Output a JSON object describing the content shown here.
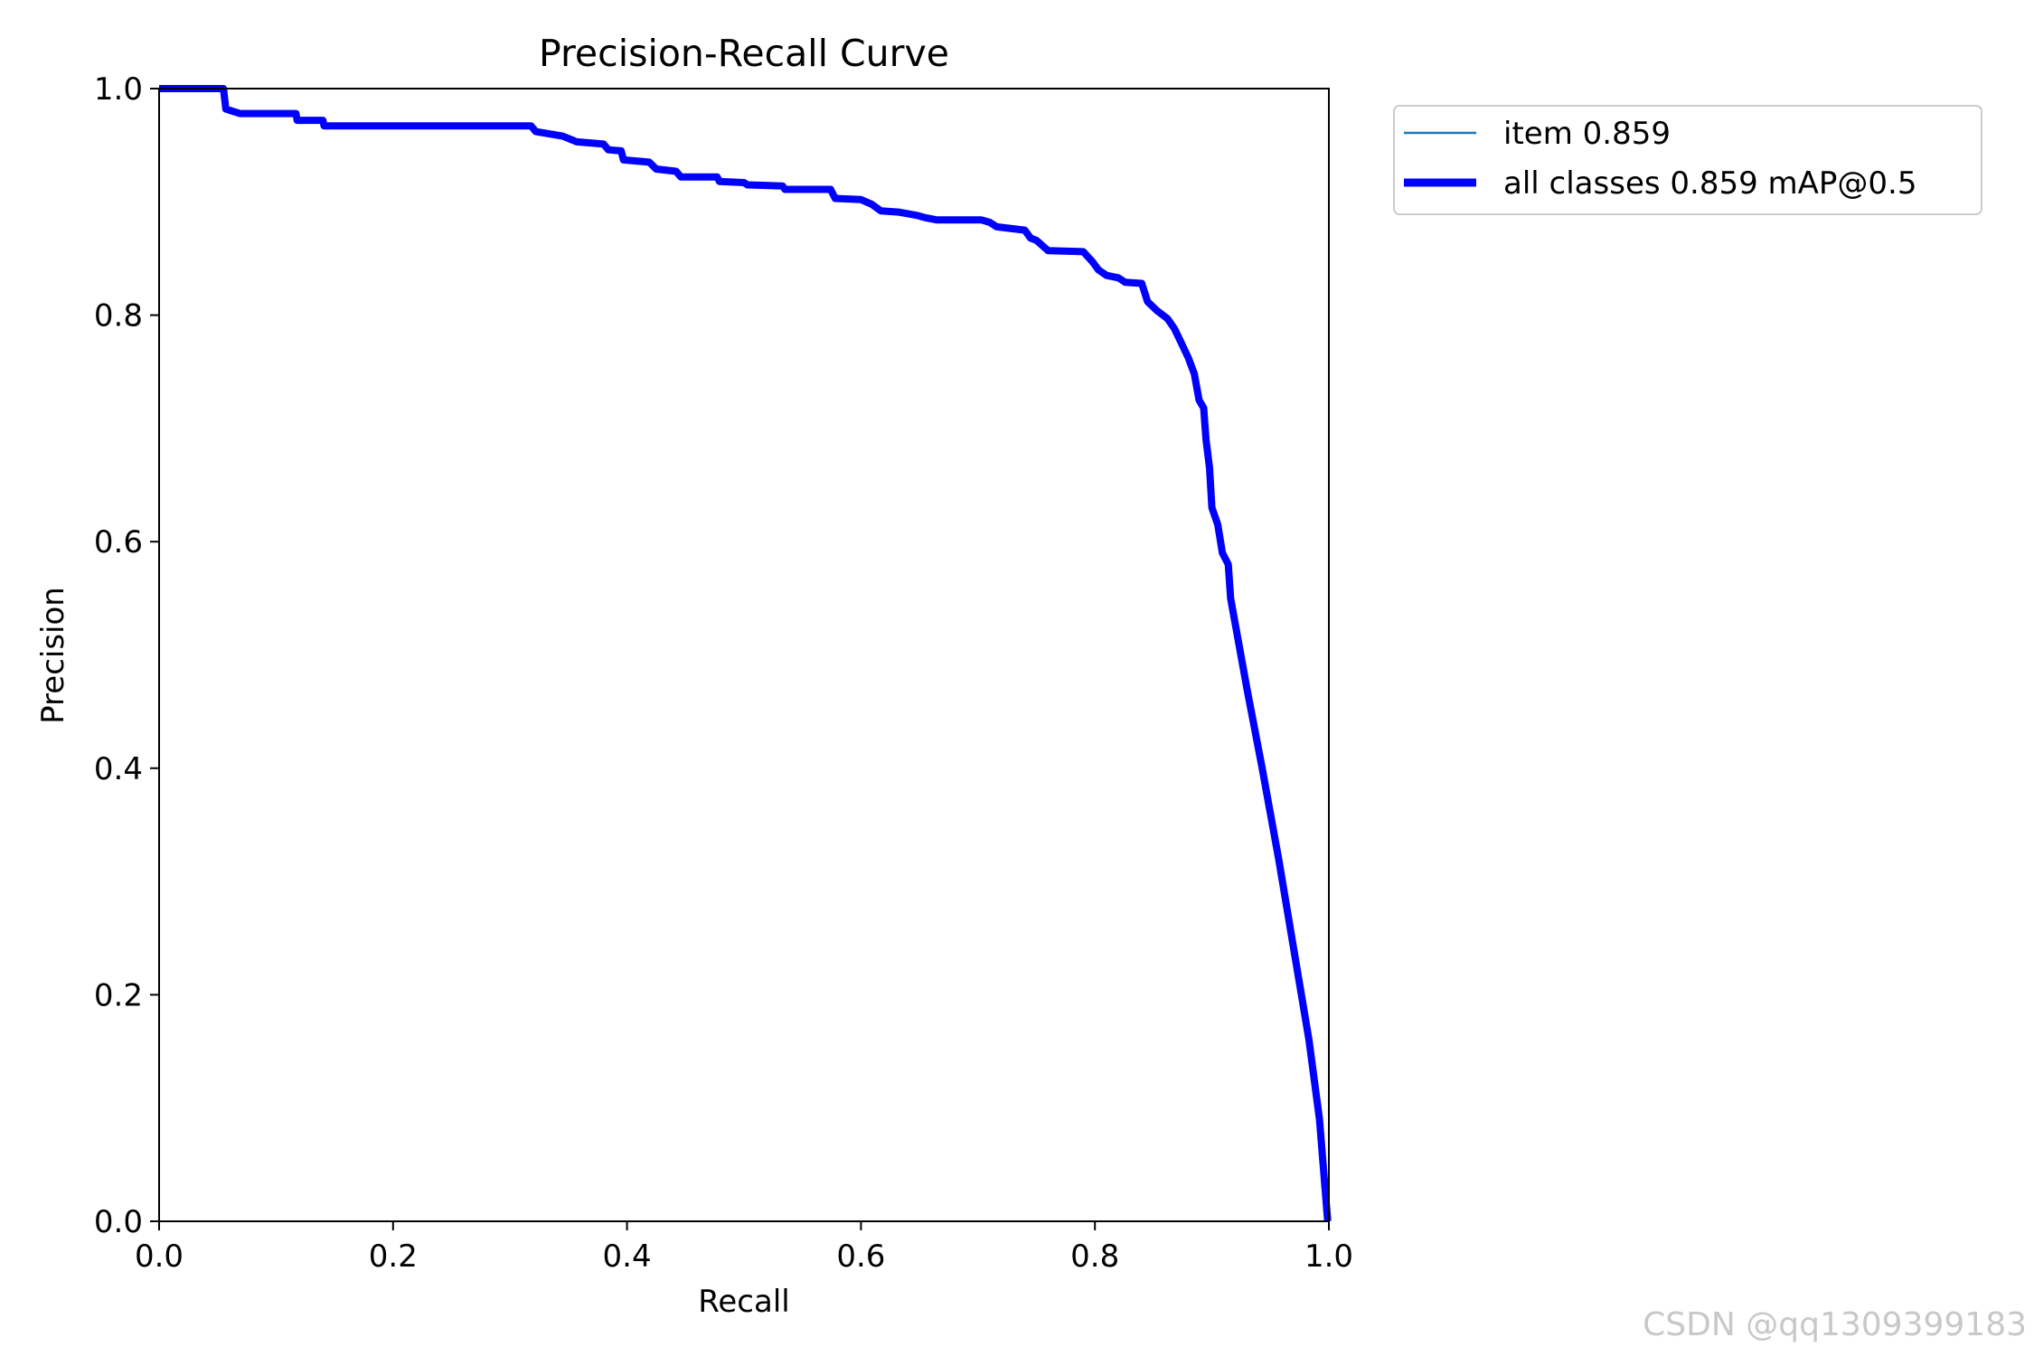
{
  "chart_data": {
    "type": "line",
    "title": "Precision-Recall Curve",
    "xlabel": "Recall",
    "ylabel": "Precision",
    "xlim": [
      0,
      1
    ],
    "ylim": [
      0,
      1
    ],
    "xticks": [
      "0.0",
      "0.2",
      "0.4",
      "0.6",
      "0.8",
      "1.0"
    ],
    "yticks": [
      "0.0",
      "0.2",
      "0.4",
      "0.6",
      "0.8",
      "1.0"
    ],
    "grid": false,
    "legend_position": "outside top-right",
    "series": [
      {
        "name": "item 0.859",
        "color": "#1f77b4",
        "style": "thin",
        "points": [
          [
            0.0,
            1.0
          ],
          [
            0.055,
            1.0
          ],
          [
            0.057,
            0.982
          ],
          [
            0.069,
            0.978
          ],
          [
            0.117,
            0.978
          ],
          [
            0.118,
            0.972
          ],
          [
            0.14,
            0.972
          ],
          [
            0.141,
            0.967
          ],
          [
            0.318,
            0.967
          ],
          [
            0.322,
            0.962
          ],
          [
            0.345,
            0.958
          ],
          [
            0.357,
            0.953
          ],
          [
            0.38,
            0.951
          ],
          [
            0.384,
            0.946
          ],
          [
            0.395,
            0.945
          ],
          [
            0.397,
            0.937
          ],
          [
            0.419,
            0.935
          ],
          [
            0.425,
            0.929
          ],
          [
            0.442,
            0.927
          ],
          [
            0.446,
            0.922
          ],
          [
            0.477,
            0.922
          ],
          [
            0.479,
            0.918
          ],
          [
            0.5,
            0.917
          ],
          [
            0.503,
            0.915
          ],
          [
            0.533,
            0.914
          ],
          [
            0.535,
            0.911
          ],
          [
            0.574,
            0.911
          ],
          [
            0.578,
            0.903
          ],
          [
            0.6,
            0.902
          ],
          [
            0.609,
            0.898
          ],
          [
            0.617,
            0.892
          ],
          [
            0.632,
            0.891
          ],
          [
            0.648,
            0.888
          ],
          [
            0.655,
            0.886
          ],
          [
            0.665,
            0.884
          ],
          [
            0.703,
            0.884
          ],
          [
            0.71,
            0.882
          ],
          [
            0.716,
            0.878
          ],
          [
            0.74,
            0.875
          ],
          [
            0.745,
            0.868
          ],
          [
            0.75,
            0.866
          ],
          [
            0.76,
            0.857
          ],
          [
            0.79,
            0.856
          ],
          [
            0.798,
            0.847
          ],
          [
            0.803,
            0.84
          ],
          [
            0.81,
            0.835
          ],
          [
            0.82,
            0.833
          ],
          [
            0.826,
            0.829
          ],
          [
            0.84,
            0.828
          ],
          [
            0.845,
            0.812
          ],
          [
            0.853,
            0.804
          ],
          [
            0.862,
            0.797
          ],
          [
            0.868,
            0.788
          ],
          [
            0.874,
            0.775
          ],
          [
            0.88,
            0.762
          ],
          [
            0.885,
            0.748
          ],
          [
            0.889,
            0.725
          ],
          [
            0.893,
            0.718
          ],
          [
            0.895,
            0.69
          ],
          [
            0.898,
            0.665
          ],
          [
            0.9,
            0.63
          ],
          [
            0.905,
            0.615
          ],
          [
            0.909,
            0.59
          ],
          [
            0.914,
            0.58
          ],
          [
            0.916,
            0.55
          ],
          [
            0.93,
            0.47
          ],
          [
            0.943,
            0.4
          ],
          [
            0.957,
            0.32
          ],
          [
            0.97,
            0.24
          ],
          [
            0.983,
            0.16
          ],
          [
            0.992,
            0.09
          ],
          [
            0.999,
            0.0
          ]
        ]
      },
      {
        "name": "all classes 0.859 mAP@0.5",
        "color": "#0000ff",
        "style": "thick",
        "points": [
          [
            0.0,
            1.0
          ],
          [
            0.055,
            1.0
          ],
          [
            0.057,
            0.982
          ],
          [
            0.069,
            0.978
          ],
          [
            0.117,
            0.978
          ],
          [
            0.118,
            0.972
          ],
          [
            0.14,
            0.972
          ],
          [
            0.141,
            0.967
          ],
          [
            0.318,
            0.967
          ],
          [
            0.322,
            0.962
          ],
          [
            0.345,
            0.958
          ],
          [
            0.357,
            0.953
          ],
          [
            0.38,
            0.951
          ],
          [
            0.384,
            0.946
          ],
          [
            0.395,
            0.945
          ],
          [
            0.397,
            0.937
          ],
          [
            0.419,
            0.935
          ],
          [
            0.425,
            0.929
          ],
          [
            0.442,
            0.927
          ],
          [
            0.446,
            0.922
          ],
          [
            0.477,
            0.922
          ],
          [
            0.479,
            0.918
          ],
          [
            0.5,
            0.917
          ],
          [
            0.503,
            0.915
          ],
          [
            0.533,
            0.914
          ],
          [
            0.535,
            0.911
          ],
          [
            0.574,
            0.911
          ],
          [
            0.578,
            0.903
          ],
          [
            0.6,
            0.902
          ],
          [
            0.609,
            0.898
          ],
          [
            0.617,
            0.892
          ],
          [
            0.632,
            0.891
          ],
          [
            0.648,
            0.888
          ],
          [
            0.655,
            0.886
          ],
          [
            0.665,
            0.884
          ],
          [
            0.703,
            0.884
          ],
          [
            0.71,
            0.882
          ],
          [
            0.716,
            0.878
          ],
          [
            0.74,
            0.875
          ],
          [
            0.745,
            0.868
          ],
          [
            0.75,
            0.866
          ],
          [
            0.76,
            0.857
          ],
          [
            0.79,
            0.856
          ],
          [
            0.798,
            0.847
          ],
          [
            0.803,
            0.84
          ],
          [
            0.81,
            0.835
          ],
          [
            0.82,
            0.833
          ],
          [
            0.826,
            0.829
          ],
          [
            0.84,
            0.828
          ],
          [
            0.845,
            0.812
          ],
          [
            0.853,
            0.804
          ],
          [
            0.862,
            0.797
          ],
          [
            0.868,
            0.788
          ],
          [
            0.874,
            0.775
          ],
          [
            0.88,
            0.762
          ],
          [
            0.885,
            0.748
          ],
          [
            0.889,
            0.725
          ],
          [
            0.893,
            0.718
          ],
          [
            0.895,
            0.69
          ],
          [
            0.898,
            0.665
          ],
          [
            0.9,
            0.63
          ],
          [
            0.905,
            0.615
          ],
          [
            0.909,
            0.59
          ],
          [
            0.914,
            0.58
          ],
          [
            0.916,
            0.55
          ],
          [
            0.93,
            0.47
          ],
          [
            0.943,
            0.4
          ],
          [
            0.957,
            0.32
          ],
          [
            0.97,
            0.24
          ],
          [
            0.983,
            0.16
          ],
          [
            0.992,
            0.09
          ],
          [
            0.999,
            0.0
          ]
        ]
      }
    ]
  },
  "watermark": "CSDN @qq1309399183"
}
